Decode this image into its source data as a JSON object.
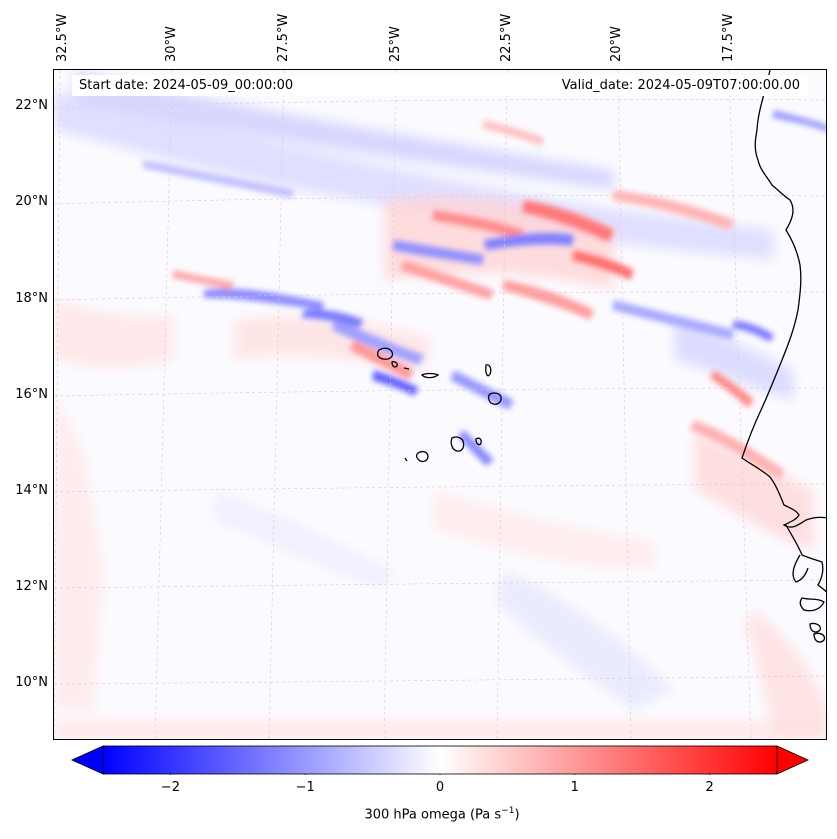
{
  "header": {
    "start_date": "Start date: 2024-05-09_00:00:00",
    "valid_date": "Valid_date: 2024-05-09T07:00:00.00"
  },
  "longitude_labels": [
    "32.5°W",
    "30°W",
    "27.5°W",
    "25°W",
    "22.5°W",
    "20°W",
    "17.5°W"
  ],
  "latitude_labels": [
    "22°N",
    "20°N",
    "18°N",
    "16°N",
    "14°N",
    "12°N",
    "10°N"
  ],
  "colorbar": {
    "label": "300 hPa omega (Pa s",
    "label_sup": "−1",
    "label_end": ")",
    "ticks": [
      "−2",
      "−1",
      "0",
      "1",
      "2"
    ],
    "tick_values": [
      -2,
      -1,
      0,
      1,
      2
    ],
    "vmin": -2.5,
    "vmax": 2.5,
    "negative_color": "#0000ff",
    "neutral_color": "#ffffff",
    "positive_color": "#ff0000"
  },
  "colors": {
    "coastline": "#000000",
    "gridline": "#d8c8c8"
  }
}
